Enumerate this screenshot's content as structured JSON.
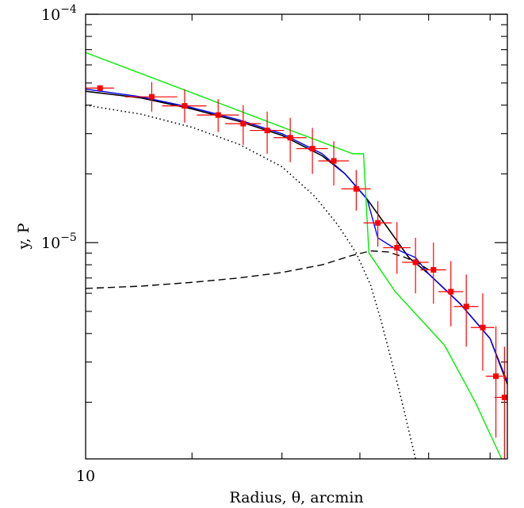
{
  "chart_data": {
    "type": "line",
    "xlabel": "Radius, θ, arcmin",
    "ylabel": "y, P",
    "x_scale": "log",
    "y_scale": "log",
    "xlim": [
      10,
      20.6
    ],
    "ylim": [
      1.13e-06,
      0.0001
    ],
    "x_tick_labels": [
      {
        "value": 10,
        "label": "10"
      }
    ],
    "y_tick_labels": [
      {
        "value": 0.0001,
        "base": "10",
        "exp": "−4"
      },
      {
        "value": 1e-05,
        "base": "10",
        "exp": "−5"
      }
    ],
    "colors": {
      "data": "#ff0000",
      "black": "#000000",
      "blue": "#0000ff",
      "green": "#00ee00",
      "frame": "#000000"
    },
    "series": [
      {
        "style": "points",
        "color": "#ff0000",
        "points": [
          {
            "x": 10.25,
            "y": 4.75e-05,
            "xerr": [
              0.25,
              0.25
            ],
            "yerr": [
              4.75e-05,
              4.75e-05
            ]
          },
          {
            "x": 11.2,
            "y": 4.35e-05,
            "xerr": [
              0.5,
              0.5
            ],
            "yerr": [
              3.75e-05,
              5.05e-05
            ]
          },
          {
            "x": 11.85,
            "y": 3.97e-05,
            "xerr": [
              0.45,
              0.45
            ],
            "yerr": [
              3.35e-05,
              4.7e-05
            ]
          },
          {
            "x": 12.55,
            "y": 3.62e-05,
            "xerr": [
              0.45,
              0.45
            ],
            "yerr": [
              3.05e-05,
              4.25e-05
            ]
          },
          {
            "x": 13.1,
            "y": 3.32e-05,
            "xerr": [
              0.4,
              0.4
            ],
            "yerr": [
              2.68e-05,
              4e-05
            ]
          },
          {
            "x": 13.65,
            "y": 3.1e-05,
            "xerr": [
              0.4,
              0.4
            ],
            "yerr": [
              2.45e-05,
              3.75e-05
            ]
          },
          {
            "x": 14.2,
            "y": 2.88e-05,
            "xerr": [
              0.4,
              0.4
            ],
            "yerr": [
              2.25e-05,
              3.52e-05
            ]
          },
          {
            "x": 14.75,
            "y": 2.58e-05,
            "xerr": [
              0.4,
              0.4
            ],
            "yerr": [
              2e-05,
              3.18e-05
            ]
          },
          {
            "x": 15.3,
            "y": 2.28e-05,
            "xerr": [
              0.4,
              0.4
            ],
            "yerr": [
              1.78e-05,
              2.78e-05
            ]
          },
          {
            "x": 15.9,
            "y": 1.72e-05,
            "xerr": [
              0.4,
              0.4
            ],
            "yerr": [
              1.38e-05,
              2.08e-05
            ]
          },
          {
            "x": 16.5,
            "y": 1.22e-05,
            "xerr": [
              0.4,
              0.4
            ],
            "yerr": [
              9.6e-06,
              1.52e-05
            ]
          },
          {
            "x": 17.05,
            "y": 9.5e-06,
            "xerr": [
              0.4,
              0.4
            ],
            "yerr": [
              7.3e-06,
              1.23e-05
            ]
          },
          {
            "x": 17.6,
            "y": 8.2e-06,
            "xerr": [
              0.4,
              0.4
            ],
            "yerr": [
              6e-06,
              1.05e-05
            ]
          },
          {
            "x": 18.15,
            "y": 7.6e-06,
            "xerr": [
              0.4,
              0.4
            ],
            "yerr": [
              5.4e-06,
              1e-05
            ]
          },
          {
            "x": 18.7,
            "y": 6.1e-06,
            "xerr": [
              0.4,
              0.4
            ],
            "yerr": [
              4.3e-06,
              8.3e-06
            ]
          },
          {
            "x": 19.2,
            "y": 5.25e-06,
            "xerr": [
              0.4,
              0.4
            ],
            "yerr": [
              3.5e-06,
              7.25e-06
            ]
          },
          {
            "x": 19.75,
            "y": 4.25e-06,
            "xerr": [
              0.4,
              0.4
            ],
            "yerr": [
              2.75e-06,
              6e-06
            ]
          },
          {
            "x": 20.2,
            "y": 2.6e-06,
            "xerr": [
              0.35,
              0.35
            ],
            "yerr": [
              1.4e-06,
              4.3e-06
            ]
          },
          {
            "x": 20.5,
            "y": 2.1e-06,
            "xerr": [
              0.35,
              0.35
            ],
            "yerr": [
              1.13e-06,
              3.5e-06
            ]
          },
          {
            "x": 20.75,
            "y": 2.55e-06,
            "xerr": [
              0.3,
              0.3
            ],
            "yerr": [
              1.45e-06,
              3.75e-06
            ]
          }
        ]
      },
      {
        "style": "solid",
        "color": "#000000",
        "x": [
          10.0,
          11.0,
          12.0,
          13.0,
          14.0,
          15.0,
          15.6,
          16.2,
          16.8,
          17.4,
          18.0,
          19.0,
          20.0,
          20.6
        ],
        "y": [
          4.6e-05,
          4.3e-05,
          3.85e-05,
          3.4e-05,
          2.95e-05,
          2.4e-05,
          2e-05,
          1.55e-05,
          1.15e-05,
          8.6e-06,
          7.3e-06,
          5.4e-06,
          3.8e-06,
          2.4e-06
        ]
      },
      {
        "style": "solid",
        "color": "#0000ff",
        "x": [
          10.0,
          11.0,
          12.0,
          13.0,
          14.0,
          15.0,
          15.6,
          16.2,
          16.5,
          17.0,
          17.6,
          18.0,
          19.0,
          20.0,
          20.6
        ],
        "y": [
          4.7e-05,
          4.35e-05,
          3.9e-05,
          3.45e-05,
          3e-05,
          2.45e-05,
          2e-05,
          1.55e-05,
          1.05e-05,
          9.4e-06,
          8.6e-06,
          7.3e-06,
          5.4e-06,
          3.8e-06,
          2.45e-06
        ]
      },
      {
        "style": "solid",
        "color": "#00ee00",
        "x": [
          10.0,
          15.8,
          16.1,
          16.25,
          17.0,
          18.5,
          19.5,
          20.4
        ],
        "y": [
          6.8e-05,
          2.45e-05,
          2.45e-05,
          9e-06,
          6.1e-06,
          3.55e-06,
          2e-06,
          1.13e-06
        ]
      },
      {
        "style": "dotted",
        "color": "#000000",
        "x": [
          10.0,
          11.0,
          12.0,
          13.0,
          14.0,
          14.8,
          15.4,
          15.9,
          16.3,
          16.6,
          16.9,
          17.2,
          17.4,
          17.6
        ],
        "y": [
          4e-05,
          3.65e-05,
          3.2e-05,
          2.7e-05,
          2.15e-05,
          1.6e-05,
          1.2e-05,
          9e-06,
          6.5e-06,
          4.5e-06,
          3e-06,
          2e-06,
          1.5e-06,
          1.13e-06
        ]
      },
      {
        "style": "dashed",
        "color": "#000000",
        "x": [
          10.0,
          11.0,
          12.0,
          13.0,
          14.0,
          15.0,
          15.8,
          16.3,
          16.8,
          17.3,
          17.7,
          18.0
        ],
        "y": [
          6.3e-06,
          6.45e-06,
          6.7e-06,
          7e-06,
          7.4e-06,
          8e-06,
          8.8e-06,
          9.2e-06,
          9.1e-06,
          8.6e-06,
          8.1e-06,
          7.6e-06
        ]
      }
    ]
  }
}
